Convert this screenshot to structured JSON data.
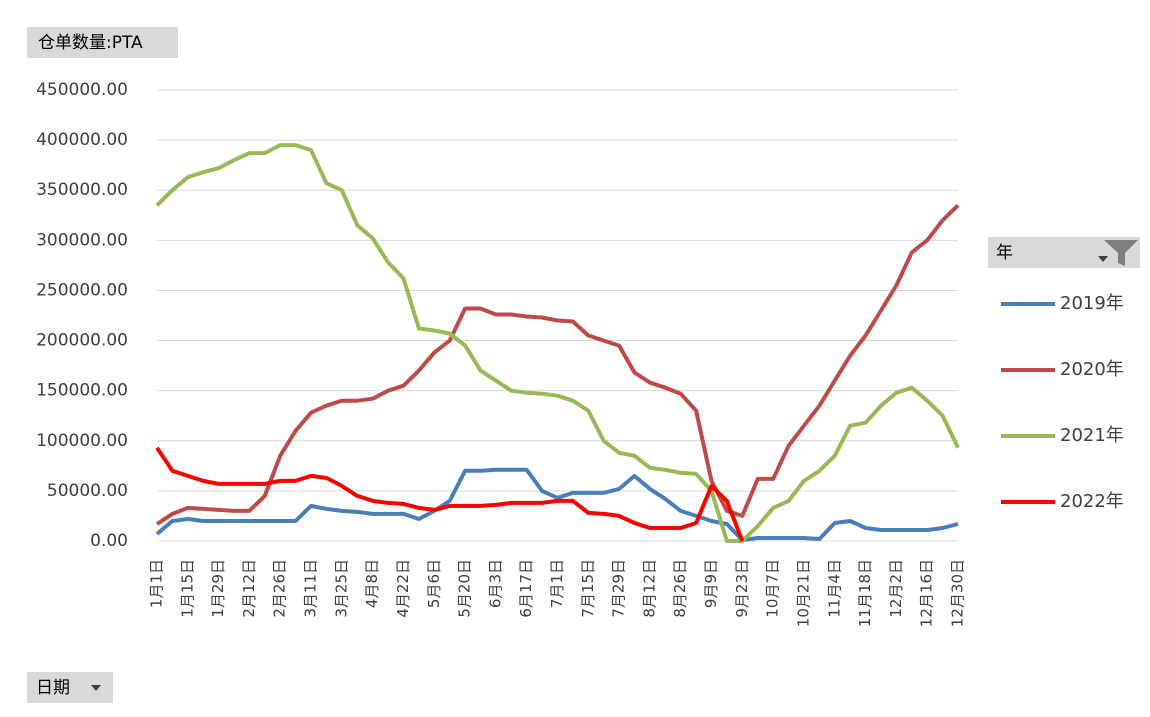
{
  "chart_data": {
    "type": "line",
    "title": "仓单数量:PTA",
    "x_field": "日期",
    "legend_title": "年",
    "legend_position": "right",
    "grid": true,
    "categories": [
      "1月1日",
      null,
      "1月15日",
      null,
      "1月29日",
      null,
      "2月12日",
      null,
      "2月26日",
      null,
      "3月11日",
      null,
      "3月25日",
      null,
      "4月8日",
      null,
      "4月22日",
      null,
      "5月6日",
      null,
      "5月20日",
      null,
      "6月3日",
      null,
      "6月17日",
      null,
      "7月1日",
      null,
      "7月15日",
      null,
      "7月29日",
      null,
      "8月12日",
      null,
      "8月26日",
      null,
      "9月9日",
      null,
      "9月23日",
      null,
      "10月7日",
      null,
      "10月21日",
      null,
      "11月4日",
      null,
      "11月18日",
      null,
      "12月2日",
      null,
      "12月16日",
      null,
      "12月30日"
    ],
    "ylim": [
      0,
      450000
    ],
    "yticks": [
      {
        "value": 0,
        "label": "0.00"
      },
      {
        "value": 50000,
        "label": "50000.00"
      },
      {
        "value": 100000,
        "label": "100000.00"
      },
      {
        "value": 150000,
        "label": "150000.00"
      },
      {
        "value": 200000,
        "label": "200000.00"
      },
      {
        "value": 250000,
        "label": "250000.00"
      },
      {
        "value": 300000,
        "label": "300000.00"
      },
      {
        "value": 350000,
        "label": "350000.00"
      },
      {
        "value": 400000,
        "label": "400000.00"
      },
      {
        "value": 450000,
        "label": "450000.00"
      }
    ],
    "series": [
      {
        "name": "2019年",
        "color": "#4a7ebb",
        "values": [
          7000,
          20000,
          22000,
          20000,
          20000,
          20000,
          20000,
          20000,
          20000,
          20000,
          35000,
          32000,
          30000,
          29000,
          27000,
          27000,
          27000,
          22000,
          30000,
          40000,
          70000,
          70000,
          71000,
          71000,
          71000,
          50000,
          43000,
          48000,
          48000,
          48000,
          52000,
          65000,
          52000,
          42000,
          30000,
          25000,
          20000,
          17000,
          1000,
          3000,
          3000,
          3000,
          3000,
          2000,
          18000,
          20000,
          13000,
          11000,
          11000,
          11000,
          11000,
          13000,
          17000
        ]
      },
      {
        "name": "2020年",
        "color": "#be4b48",
        "values": [
          17000,
          27000,
          33000,
          32000,
          31000,
          30000,
          30000,
          45000,
          85000,
          110000,
          128000,
          135000,
          140000,
          140000,
          142000,
          150000,
          155000,
          170000,
          188000,
          200000,
          232000,
          232000,
          226000,
          226000,
          224000,
          223000,
          220000,
          219000,
          205000,
          200000,
          195000,
          168000,
          158000,
          153000,
          147000,
          130000,
          60000,
          30000,
          25000,
          62000,
          62000,
          95000,
          115000,
          135000,
          160000,
          185000,
          205000,
          230000,
          255000,
          288000,
          300000,
          320000,
          335000
        ]
      },
      {
        "name": "2021年",
        "color": "#98b954",
        "values": [
          335000,
          350000,
          363000,
          368000,
          372000,
          380000,
          387000,
          387000,
          395000,
          395000,
          390000,
          357000,
          350000,
          315000,
          302000,
          278000,
          262000,
          212000,
          210000,
          207000,
          195000,
          170000,
          160000,
          150000,
          148000,
          147000,
          145000,
          140000,
          130000,
          100000,
          88000,
          85000,
          73000,
          71000,
          68000,
          67000,
          50000,
          0,
          0,
          15000,
          33000,
          40000,
          60000,
          70000,
          85000,
          115000,
          118000,
          135000,
          148000,
          153000,
          140000,
          125000,
          93000
        ]
      },
      {
        "name": "2022年",
        "color": "#ff0000",
        "values": [
          93000,
          70000,
          65000,
          60000,
          57000,
          57000,
          57000,
          57000,
          60000,
          60000,
          65000,
          63000,
          55000,
          45000,
          40000,
          38000,
          37000,
          33000,
          31000,
          35000,
          35000,
          35000,
          36000,
          38000,
          38000,
          38000,
          40000,
          40000,
          28000,
          27000,
          25000,
          18000,
          13000,
          13000,
          13000,
          18000,
          55000,
          40000,
          0,
          null,
          null,
          null,
          null,
          null,
          null,
          null,
          null,
          null,
          null,
          null,
          null,
          null,
          null
        ]
      }
    ]
  }
}
